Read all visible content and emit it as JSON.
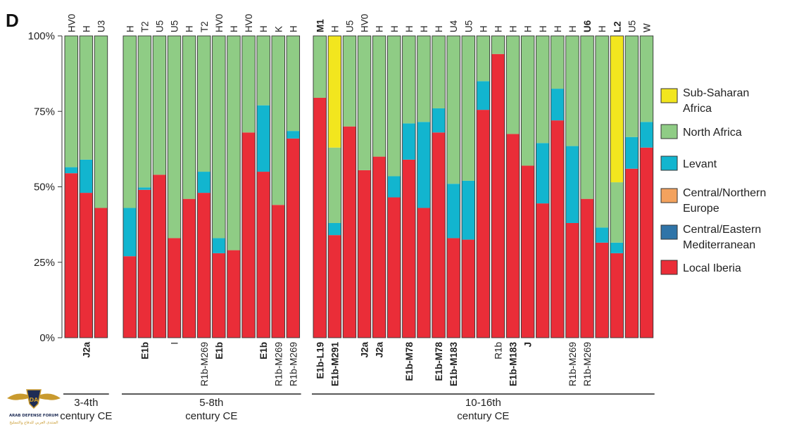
{
  "panel_label": "D",
  "colors": {
    "sub_saharan": "#f2e61e",
    "north_africa": "#8fcc85",
    "levant": "#12b5cf",
    "central_northern_europe": "#f3a25e",
    "central_eastern_med": "#2f74a8",
    "local_iberia": "#ea2d38"
  },
  "chart_data": {
    "type": "bar",
    "stacked": true,
    "ylim": [
      0,
      100
    ],
    "yticks": [
      "0%",
      "25%",
      "50%",
      "75%",
      "100%"
    ],
    "series": [
      {
        "key": "local_iberia"
      },
      {
        "key": "central_eastern_med"
      },
      {
        "key": "central_northern_europe"
      },
      {
        "key": "levant"
      },
      {
        "key": "north_africa"
      },
      {
        "key": "sub_saharan"
      }
    ],
    "groups": [
      {
        "period_lines": [
          "3-4th",
          "century CE"
        ],
        "bars": [
          {
            "top": "HV0",
            "top_bold": false,
            "bottom": "",
            "bottom_bold": false,
            "values": {
              "local_iberia": 54.5,
              "levant": 2.0,
              "north_africa": 43.5
            }
          },
          {
            "top": "H",
            "top_bold": false,
            "bottom": "J2a",
            "bottom_bold": true,
            "values": {
              "local_iberia": 48.0,
              "levant": 11.0,
              "north_africa": 41.0
            }
          },
          {
            "top": "U3",
            "top_bold": false,
            "bottom": "",
            "bottom_bold": false,
            "values": {
              "local_iberia": 43.0,
              "north_africa": 57.0
            }
          }
        ]
      },
      {
        "period_lines": [
          "5-8th",
          "century CE"
        ],
        "bars": [
          {
            "top": "H",
            "top_bold": false,
            "bottom": "",
            "bottom_bold": false,
            "values": {
              "local_iberia": 27.0,
              "levant": 16.0,
              "north_africa": 57.0
            }
          },
          {
            "top": "T2",
            "top_bold": false,
            "bottom": "E1b",
            "bottom_bold": true,
            "values": {
              "local_iberia": 49.0,
              "levant": 0.8,
              "north_africa": 50.2
            }
          },
          {
            "top": "U5",
            "top_bold": false,
            "bottom": "",
            "bottom_bold": false,
            "values": {
              "local_iberia": 54.0,
              "north_africa": 46.0
            }
          },
          {
            "top": "U5",
            "top_bold": false,
            "bottom": "I",
            "bottom_bold": false,
            "values": {
              "local_iberia": 33.0,
              "north_africa": 67.0
            }
          },
          {
            "top": "H",
            "top_bold": false,
            "bottom": "",
            "bottom_bold": false,
            "values": {
              "local_iberia": 46.0,
              "north_africa": 54.0
            }
          },
          {
            "top": "T2",
            "top_bold": false,
            "bottom": "R1b-M269",
            "bottom_bold": false,
            "values": {
              "local_iberia": 48.0,
              "levant": 7.0,
              "north_africa": 45.0
            }
          },
          {
            "top": "HV0",
            "top_bold": false,
            "bottom": "E1b",
            "bottom_bold": true,
            "values": {
              "local_iberia": 28.0,
              "levant": 5.0,
              "north_africa": 67.0
            }
          },
          {
            "top": "H",
            "top_bold": false,
            "bottom": "",
            "bottom_bold": false,
            "values": {
              "local_iberia": 29.0,
              "north_africa": 71.0
            }
          },
          {
            "top": "HV0",
            "top_bold": false,
            "bottom": "",
            "bottom_bold": false,
            "values": {
              "local_iberia": 68.0,
              "north_africa": 32.0
            }
          },
          {
            "top": "H",
            "top_bold": false,
            "bottom": "E1b",
            "bottom_bold": true,
            "values": {
              "local_iberia": 55.0,
              "levant": 22.0,
              "north_africa": 23.0
            }
          },
          {
            "top": "K",
            "top_bold": false,
            "bottom": "R1b-M269",
            "bottom_bold": false,
            "values": {
              "local_iberia": 44.0,
              "north_africa": 56.0
            }
          },
          {
            "top": "H",
            "top_bold": false,
            "bottom": "R1b-M269",
            "bottom_bold": false,
            "values": {
              "local_iberia": 66.0,
              "levant": 2.5,
              "north_africa": 31.5
            }
          }
        ]
      },
      {
        "period_lines": [
          "10-16th",
          "century CE"
        ],
        "bars": [
          {
            "top": "M1",
            "top_bold": true,
            "bottom": "E1b-L19",
            "bottom_bold": true,
            "values": {
              "local_iberia": 79.5,
              "north_africa": 20.5
            }
          },
          {
            "top": "H",
            "top_bold": false,
            "bottom": "E1b-M291",
            "bottom_bold": true,
            "values": {
              "local_iberia": 34.0,
              "levant": 4.0,
              "north_africa": 25.0,
              "sub_saharan": 37.0
            }
          },
          {
            "top": "U5",
            "top_bold": false,
            "bottom": "",
            "bottom_bold": false,
            "values": {
              "local_iberia": 70.0,
              "north_africa": 30.0
            }
          },
          {
            "top": "HV0",
            "top_bold": false,
            "bottom": "J2a",
            "bottom_bold": true,
            "values": {
              "local_iberia": 55.5,
              "north_africa": 44.5
            }
          },
          {
            "top": "H",
            "top_bold": false,
            "bottom": "J2a",
            "bottom_bold": true,
            "values": {
              "local_iberia": 60.0,
              "north_africa": 40.0
            }
          },
          {
            "top": "H",
            "top_bold": false,
            "bottom": "",
            "bottom_bold": false,
            "values": {
              "local_iberia": 46.5,
              "levant": 7.0,
              "north_africa": 46.5
            }
          },
          {
            "top": "H",
            "top_bold": false,
            "bottom": "E1b-M78",
            "bottom_bold": true,
            "values": {
              "local_iberia": 59.0,
              "levant": 12.0,
              "north_africa": 29.0
            }
          },
          {
            "top": "H",
            "top_bold": false,
            "bottom": "",
            "bottom_bold": false,
            "values": {
              "local_iberia": 43.0,
              "levant": 28.5,
              "north_africa": 28.5
            }
          },
          {
            "top": "H",
            "top_bold": false,
            "bottom": "E1b-M78",
            "bottom_bold": true,
            "values": {
              "local_iberia": 68.0,
              "levant": 8.0,
              "north_africa": 24.0
            }
          },
          {
            "top": "U4",
            "top_bold": false,
            "bottom": "E1b-M183",
            "bottom_bold": true,
            "values": {
              "local_iberia": 33.0,
              "levant": 18.0,
              "north_africa": 49.0
            }
          },
          {
            "top": "U5",
            "top_bold": false,
            "bottom": "",
            "bottom_bold": false,
            "values": {
              "local_iberia": 32.5,
              "levant": 19.5,
              "north_africa": 48.0
            }
          },
          {
            "top": "H",
            "top_bold": false,
            "bottom": "",
            "bottom_bold": false,
            "values": {
              "local_iberia": 75.5,
              "levant": 9.5,
              "north_africa": 15.0
            }
          },
          {
            "top": "H",
            "top_bold": false,
            "bottom": "R1b",
            "bottom_bold": false,
            "values": {
              "local_iberia": 94.0,
              "north_africa": 6.0
            }
          },
          {
            "top": "H",
            "top_bold": false,
            "bottom": "E1b-M183",
            "bottom_bold": true,
            "values": {
              "local_iberia": 67.5,
              "north_africa": 32.5
            }
          },
          {
            "top": "H",
            "top_bold": false,
            "bottom": "J",
            "bottom_bold": true,
            "values": {
              "local_iberia": 57.0,
              "north_africa": 43.0
            }
          },
          {
            "top": "H",
            "top_bold": false,
            "bottom": "",
            "bottom_bold": false,
            "values": {
              "local_iberia": 44.5,
              "levant": 20.0,
              "north_africa": 35.5
            }
          },
          {
            "top": "H",
            "top_bold": false,
            "bottom": "",
            "bottom_bold": false,
            "values": {
              "local_iberia": 72.0,
              "levant": 10.5,
              "north_africa": 17.5
            }
          },
          {
            "top": "H",
            "top_bold": false,
            "bottom": "R1b-M269",
            "bottom_bold": false,
            "values": {
              "local_iberia": 38.0,
              "levant": 25.5,
              "north_africa": 36.5
            }
          },
          {
            "top": "U6",
            "top_bold": true,
            "bottom": "R1b-M269",
            "bottom_bold": false,
            "values": {
              "local_iberia": 46.0,
              "north_africa": 54.0
            }
          },
          {
            "top": "H",
            "top_bold": false,
            "bottom": "",
            "bottom_bold": false,
            "values": {
              "local_iberia": 31.5,
              "levant": 5.0,
              "north_africa": 63.5
            }
          },
          {
            "top": "L2",
            "top_bold": true,
            "bottom": "",
            "bottom_bold": false,
            "values": {
              "local_iberia": 28.0,
              "levant": 3.5,
              "north_africa": 20.0,
              "sub_saharan": 48.5
            }
          },
          {
            "top": "U5",
            "top_bold": false,
            "bottom": "",
            "bottom_bold": false,
            "values": {
              "local_iberia": 56.0,
              "levant": 10.5,
              "north_africa": 33.5
            }
          },
          {
            "top": "W",
            "top_bold": false,
            "bottom": "",
            "bottom_bold": false,
            "values": {
              "local_iberia": 63.0,
              "levant": 8.5,
              "north_africa": 28.5
            }
          }
        ]
      }
    ],
    "legend": {
      "placement": "right",
      "entries": [
        {
          "key": "sub_saharan",
          "lines": [
            "Sub-Saharan",
            "Africa"
          ]
        },
        {
          "key": "north_africa",
          "lines": [
            "North Africa"
          ]
        },
        {
          "key": "levant",
          "lines": [
            "Levant"
          ]
        },
        {
          "key": "central_northern_europe",
          "lines": [
            "Central/Northern",
            "Europe"
          ]
        },
        {
          "key": "central_eastern_med",
          "lines": [
            "Central/Eastern",
            "Mediterranean"
          ]
        },
        {
          "key": "local_iberia",
          "lines": [
            "Local Iberia"
          ]
        }
      ]
    }
  },
  "logo": {
    "icon": "arab-defense-forum-logo",
    "mark_text": "DA",
    "lines": [
      "ARAB DEFENSE FORUM",
      "المنتدى العربي للدفاع والتسليح"
    ]
  }
}
